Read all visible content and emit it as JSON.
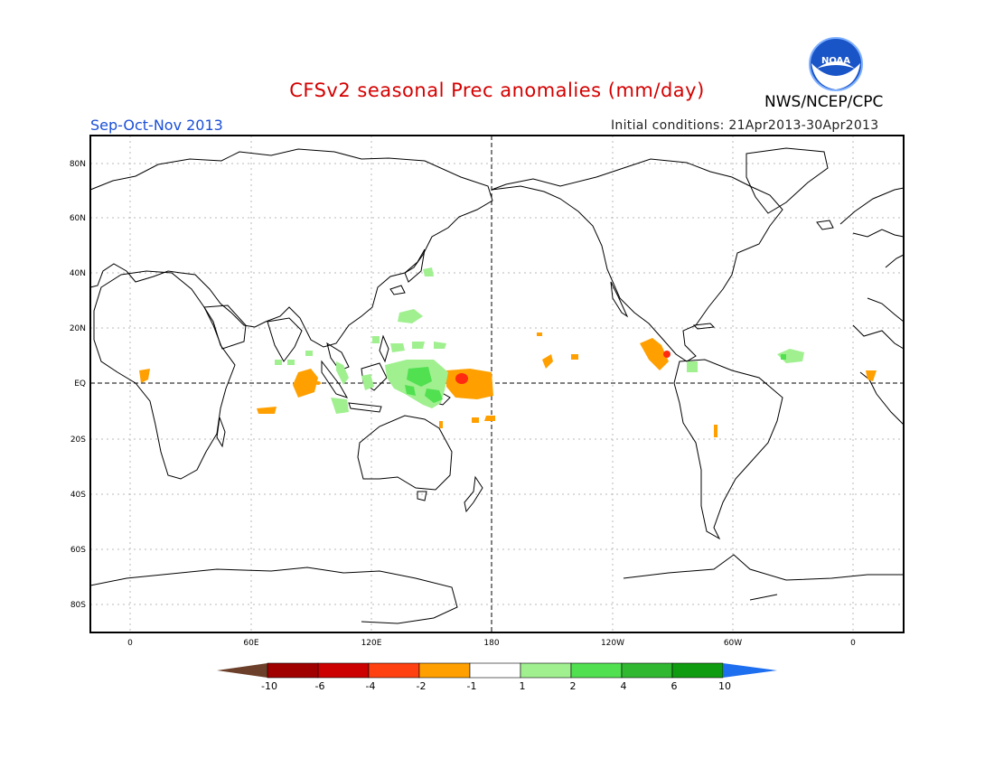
{
  "title": "CFSv2 seasonal Prec anomalies (mm/day)",
  "agency": "NWS/NCEP/CPC",
  "logo_text": "NOAA",
  "season": "Sep-Oct-Nov 2013",
  "initial_conditions": "Initial conditions: 21Apr2013-30Apr2013",
  "lat_labels": [
    "80N",
    "60N",
    "40N",
    "20N",
    "EQ",
    "20S",
    "40S",
    "60S",
    "80S"
  ],
  "lon_labels": [
    "0",
    "60E",
    "120E",
    "180",
    "120W",
    "60W",
    "0"
  ],
  "colorbar": {
    "labels": [
      "-10",
      "-6",
      "-4",
      "-2",
      "-1",
      "1",
      "2",
      "4",
      "6",
      "10"
    ],
    "colors": [
      "#6b3f2a",
      "#a00000",
      "#cc0000",
      "#ff4010",
      "#ffa000",
      "#ffffff",
      "#a0f090",
      "#50e050",
      "#30b830",
      "#109c10",
      "#1e6ef0"
    ]
  },
  "anomaly_colors": {
    "orange": "#ffa000",
    "red": "#ff2a10",
    "light_green": "#a0f090",
    "green": "#50e050"
  }
}
